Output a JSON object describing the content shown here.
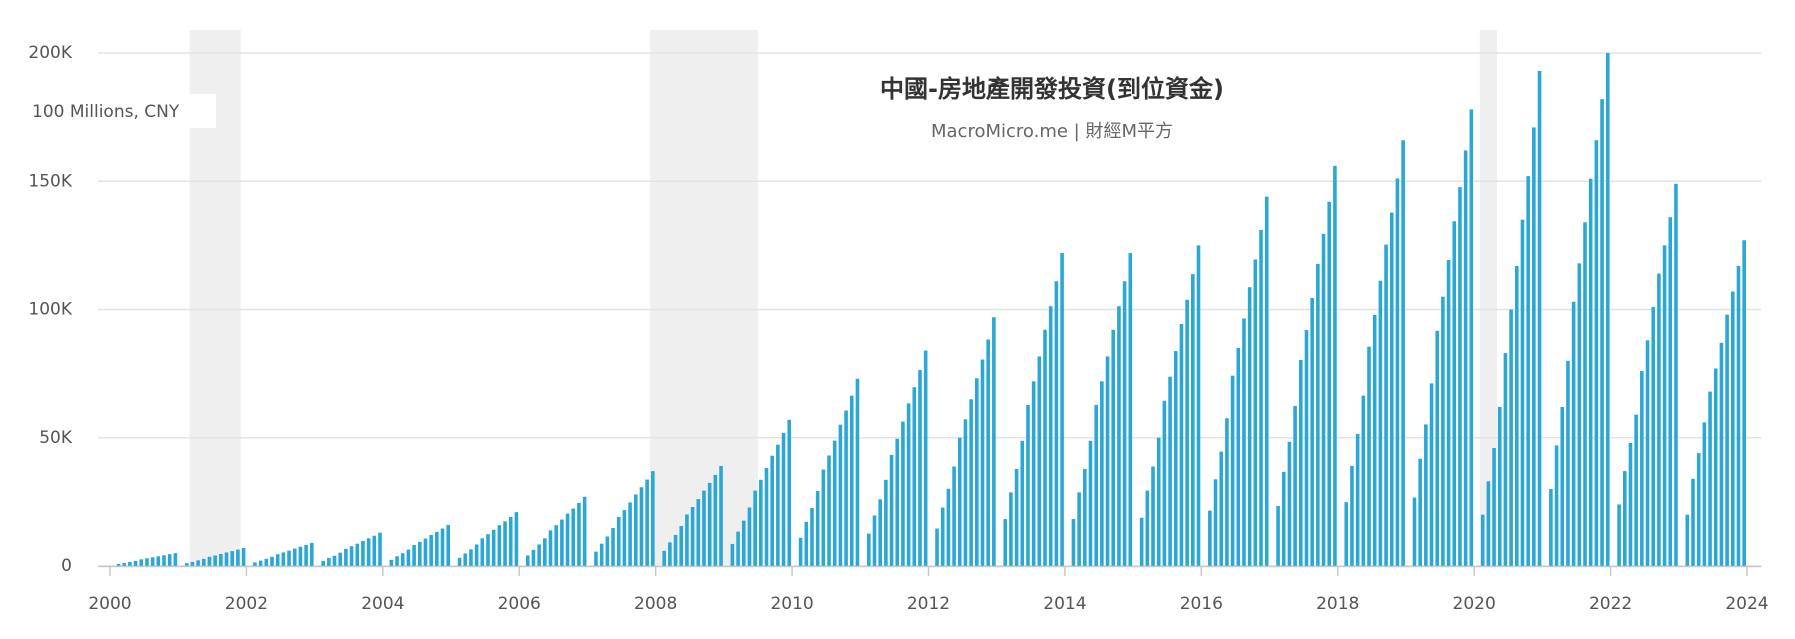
{
  "chart_data": {
    "type": "bar",
    "title": "中國-房地產開發投資(到位資金)",
    "subtitle": "MacroMicro.me | 財經M平方",
    "y_label": "100 Millions, CNY",
    "color": "#2ba7d5",
    "grid": true,
    "xlim": [
      2000,
      2024
    ],
    "xticks": [
      2000,
      2002,
      2004,
      2006,
      2008,
      2010,
      2012,
      2014,
      2016,
      2018,
      2020,
      2022,
      2024
    ],
    "ylim": [
      0,
      200000
    ],
    "yticks": [
      0,
      {
        "value": 50000,
        "label": "50K"
      },
      {
        "value": 100000,
        "label": "100K"
      },
      {
        "value": 150000,
        "label": "150K"
      },
      {
        "value": 200000,
        "label": "200K"
      }
    ],
    "recessions": [
      {
        "start": "2001-03",
        "end": "2001-11"
      },
      {
        "start": "2007-12",
        "end": "2009-06"
      },
      {
        "start": "2020-02",
        "end": "2020-04"
      }
    ],
    "x": [
      "2000-02",
      "2000-03",
      "2000-04",
      "2000-05",
      "2000-06",
      "2000-07",
      "2000-08",
      "2000-09",
      "2000-10",
      "2000-11",
      "2000-12",
      "2001-02",
      "2001-03",
      "2001-04",
      "2001-05",
      "2001-06",
      "2001-07",
      "2001-08",
      "2001-09",
      "2001-10",
      "2001-11",
      "2001-12",
      "2002-02",
      "2002-03",
      "2002-04",
      "2002-05",
      "2002-06",
      "2002-07",
      "2002-08",
      "2002-09",
      "2002-10",
      "2002-11",
      "2002-12",
      "2003-02",
      "2003-03",
      "2003-04",
      "2003-05",
      "2003-06",
      "2003-07",
      "2003-08",
      "2003-09",
      "2003-10",
      "2003-11",
      "2003-12",
      "2004-02",
      "2004-03",
      "2004-04",
      "2004-05",
      "2004-06",
      "2004-07",
      "2004-08",
      "2004-09",
      "2004-10",
      "2004-11",
      "2004-12",
      "2005-02",
      "2005-03",
      "2005-04",
      "2005-05",
      "2005-06",
      "2005-07",
      "2005-08",
      "2005-09",
      "2005-10",
      "2005-11",
      "2005-12",
      "2006-02",
      "2006-03",
      "2006-04",
      "2006-05",
      "2006-06",
      "2006-07",
      "2006-08",
      "2006-09",
      "2006-10",
      "2006-11",
      "2006-12",
      "2007-02",
      "2007-03",
      "2007-04",
      "2007-05",
      "2007-06",
      "2007-07",
      "2007-08",
      "2007-09",
      "2007-10",
      "2007-11",
      "2007-12",
      "2008-02",
      "2008-03",
      "2008-04",
      "2008-05",
      "2008-06",
      "2008-07",
      "2008-08",
      "2008-09",
      "2008-10",
      "2008-11",
      "2008-12",
      "2009-02",
      "2009-03",
      "2009-04",
      "2009-05",
      "2009-06",
      "2009-07",
      "2009-08",
      "2009-09",
      "2009-10",
      "2009-11",
      "2009-12",
      "2010-02",
      "2010-03",
      "2010-04",
      "2010-05",
      "2010-06",
      "2010-07",
      "2010-08",
      "2010-09",
      "2010-10",
      "2010-11",
      "2010-12",
      "2011-02",
      "2011-03",
      "2011-04",
      "2011-05",
      "2011-06",
      "2011-07",
      "2011-08",
      "2011-09",
      "2011-10",
      "2011-11",
      "2011-12",
      "2012-02",
      "2012-03",
      "2012-04",
      "2012-05",
      "2012-06",
      "2012-07",
      "2012-08",
      "2012-09",
      "2012-10",
      "2012-11",
      "2012-12",
      "2013-02",
      "2013-03",
      "2013-04",
      "2013-05",
      "2013-06",
      "2013-07",
      "2013-08",
      "2013-09",
      "2013-10",
      "2013-11",
      "2013-12",
      "2014-02",
      "2014-03",
      "2014-04",
      "2014-05",
      "2014-06",
      "2014-07",
      "2014-08",
      "2014-09",
      "2014-10",
      "2014-11",
      "2014-12",
      "2015-02",
      "2015-03",
      "2015-04",
      "2015-05",
      "2015-06",
      "2015-07",
      "2015-08",
      "2015-09",
      "2015-10",
      "2015-11",
      "2015-12",
      "2016-02",
      "2016-03",
      "2016-04",
      "2016-05",
      "2016-06",
      "2016-07",
      "2016-08",
      "2016-09",
      "2016-10",
      "2016-11",
      "2016-12",
      "2017-02",
      "2017-03",
      "2017-04",
      "2017-05",
      "2017-06",
      "2017-07",
      "2017-08",
      "2017-09",
      "2017-10",
      "2017-11",
      "2017-12",
      "2018-02",
      "2018-03",
      "2018-04",
      "2018-05",
      "2018-06",
      "2018-07",
      "2018-08",
      "2018-09",
      "2018-10",
      "2018-11",
      "2018-12",
      "2019-02",
      "2019-03",
      "2019-04",
      "2019-05",
      "2019-06",
      "2019-07",
      "2019-08",
      "2019-09",
      "2019-10",
      "2019-11",
      "2019-12",
      "2020-02",
      "2020-03",
      "2020-04",
      "2020-05",
      "2020-06",
      "2020-07",
      "2020-08",
      "2020-09",
      "2020-10",
      "2020-11",
      "2020-12",
      "2021-02",
      "2021-03",
      "2021-04",
      "2021-05",
      "2021-06",
      "2021-07",
      "2021-08",
      "2021-09",
      "2021-10",
      "2021-11",
      "2021-12",
      "2022-02",
      "2022-03",
      "2022-04",
      "2022-05",
      "2022-06",
      "2022-07",
      "2022-08",
      "2022-09",
      "2022-10",
      "2022-11",
      "2022-12",
      "2023-02",
      "2023-03",
      "2023-04",
      "2023-05",
      "2023-06",
      "2023-07",
      "2023-08",
      "2023-09",
      "2023-10",
      "2023-11",
      "2023-12"
    ],
    "values": [
      800,
      1200,
      1600,
      2000,
      2600,
      3000,
      3400,
      3800,
      4200,
      4600,
      5000,
      1100,
      1600,
      2200,
      2800,
      3600,
      4100,
      4700,
      5300,
      5800,
      6400,
      7000,
      1400,
      2100,
      2800,
      3600,
      4600,
      5300,
      6000,
      6800,
      7500,
      8200,
      9000,
      2000,
      3100,
      4000,
      5200,
      6700,
      7700,
      8700,
      9800,
      10800,
      11800,
      13000,
      2400,
      3800,
      5000,
      6400,
      8200,
      9400,
      10700,
      12100,
      13300,
      14600,
      16000,
      3200,
      4900,
      6500,
      8400,
      10800,
      12400,
      14100,
      15900,
      17400,
      19100,
      21000,
      4100,
      6300,
      8400,
      10800,
      13900,
      15900,
      18100,
      20400,
      22400,
      24600,
      27000,
      5600,
      8700,
      11500,
      14800,
      19100,
      21800,
      24800,
      27900,
      30700,
      33700,
      37000,
      5900,
      9200,
      12100,
      15600,
      20100,
      23000,
      26100,
      29400,
      32400,
      35500,
      39000,
      8600,
      13400,
      17700,
      22800,
      29400,
      33600,
      38200,
      43000,
      47300,
      51900,
      57000,
      11000,
      17200,
      22600,
      29200,
      37600,
      43100,
      48900,
      55100,
      60600,
      66400,
      73000,
      12600,
      19700,
      26000,
      33600,
      43300,
      49600,
      56300,
      63400,
      69700,
      76400,
      84000,
      14600,
      22800,
      30100,
      38800,
      50000,
      57200,
      65000,
      73200,
      80500,
      88300,
      97000,
      18300,
      28700,
      37800,
      48800,
      62800,
      72000,
      81700,
      92100,
      101300,
      111000,
      122000,
      18300,
      28700,
      37800,
      48800,
      62800,
      72000,
      81700,
      92100,
      101300,
      111000,
      122000,
      18800,
      29400,
      38800,
      50000,
      64400,
      73800,
      83800,
      94400,
      103800,
      113800,
      125000,
      21600,
      33800,
      44600,
      57600,
      74200,
      85000,
      96500,
      108700,
      119500,
      131000,
      144000,
      23400,
      36700,
      48400,
      62400,
      80300,
      92000,
      104500,
      117800,
      129500,
      142000,
      156000,
      24900,
      39000,
      51500,
      66400,
      85500,
      97900,
      111200,
      125300,
      137800,
      151100,
      166000,
      26700,
      41800,
      55200,
      71200,
      91700,
      105000,
      119300,
      134400,
      147700,
      162000,
      178000,
      20000,
      33000,
      46000,
      62000,
      83000,
      100000,
      117000,
      135000,
      152000,
      171000,
      193000,
      30000,
      47000,
      62000,
      80000,
      103000,
      118000,
      134000,
      151000,
      166000,
      182000,
      200000,
      24000,
      37000,
      48000,
      59000,
      76000,
      88000,
      101000,
      114000,
      125000,
      136000,
      149000,
      20000,
      34000,
      44000,
      56000,
      68000,
      77000,
      87000,
      98000,
      107000,
      117000,
      127000
    ]
  }
}
